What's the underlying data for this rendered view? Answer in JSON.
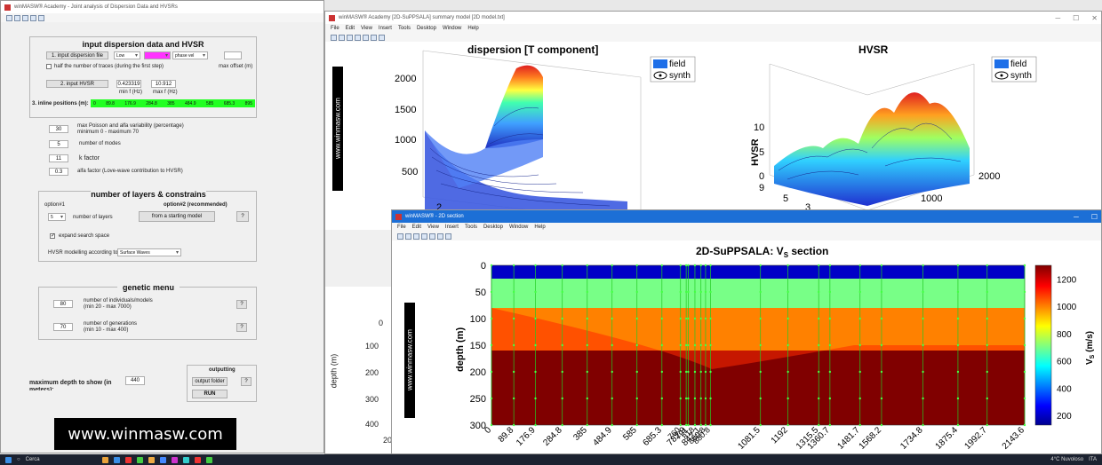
{
  "left_window": {
    "title": "winMASW® Academy - Joint analysis of Dispersion Data and HVSRs",
    "input_panel": {
      "title": "input dispersion data and HVSR",
      "btn_dispersion": "1. input dispersion file",
      "sel1": "Low",
      "sel2": "",
      "sel3": "phase vel",
      "half_traces": "half the number of traces (during the first step)",
      "max_offset": "max offset (m)",
      "btn_hvsr": "2. input HVSR",
      "min_f_value": "0.423319",
      "max_f_value": "10.912",
      "min_f": "min f  (Hz)",
      "max_f": "max f  (Hz)",
      "inline_label": "3. inline positions (m):",
      "inline_values": [
        "0",
        "89.8",
        "176.9",
        "284.8",
        "385",
        "484.9",
        "585",
        "685.3",
        "895"
      ]
    },
    "params": [
      {
        "value": "30",
        "label": "max Poisson and alfa variability (percentage)",
        "sub": "minimum 0 - maximum 70"
      },
      {
        "value": "5",
        "label": "number of modes",
        "sub": ""
      },
      {
        "value": "11",
        "label": "k factor",
        "sub": ""
      },
      {
        "value": "0.3",
        "label": "alfa factor (Love-wave contribution to HVSR)",
        "sub": ""
      }
    ],
    "layers_panel": {
      "title": "number of layers & constrains",
      "option1": "option#1",
      "option2": "option#2 (recommended)",
      "layers_value": "5",
      "layers_label": "number of layers",
      "btn_starting": "from a starting model",
      "help": "?",
      "expand": "expand search space",
      "hvsr_label": "HVSR modelling according to:",
      "hvsr_select": "Surface Waves"
    },
    "genetic": {
      "title": "genetic menu",
      "ind_value": "80",
      "ind_label": "number of individuals/models",
      "ind_range": "(min 20 - max 7000)",
      "gen_value": "70",
      "gen_label": "number of generations",
      "gen_range": "(min 10 - max 400)",
      "help": "?"
    },
    "max_depth_label": "maximum depth to show (in",
    "max_depth_label2": "meters):",
    "max_depth_value": "440",
    "output": {
      "title": "outputting",
      "folder": "output folder",
      "run": "RUN",
      "help": "?"
    },
    "banner": "www.winmasw.com"
  },
  "summary_window": {
    "title": "winMASW® Academy [2D-SuPPSALA] summary model [2D model.txt]",
    "menu": [
      "File",
      "Edit",
      "View",
      "Insert",
      "Tools",
      "Desktop",
      "Window",
      "Help"
    ],
    "watermark": "www.winmasw.com",
    "dispersion": {
      "title": "dispersion [T component]",
      "z_ticks": [
        "2000",
        "1500",
        "1000",
        "500"
      ],
      "x_ticks": [
        "2"
      ],
      "y_ticks": [
        "1000",
        "2000"
      ],
      "legend": [
        "field",
        "synth"
      ]
    },
    "hvsr": {
      "title": "HVSR",
      "zlabel": "HVSR",
      "z_ticks": [
        "10",
        "5",
        "0"
      ],
      "x_ticks": [
        "9",
        "5",
        "3",
        "2"
      ],
      "y_ticks": [
        "1000",
        "2000"
      ],
      "legend": [
        "field",
        "synth"
      ]
    },
    "lower_axis": {
      "ylabel": "depth (m)",
      "y_ticks": [
        "0",
        "100",
        "200",
        "300",
        "400"
      ],
      "x_tick": "200"
    }
  },
  "section_window": {
    "title": "winMASW® - 2D section",
    "menu": [
      "File",
      "Edit",
      "View",
      "Insert",
      "Tools",
      "Desktop",
      "Window",
      "Help"
    ],
    "watermark": "www.winmasw.com",
    "title_main": "2D-SuPPSALA: V",
    "title_sub": "S",
    "title_tail": " section",
    "colorbar_label": "V",
    "colorbar_sub": "S",
    "colorbar_unit": " (m/s)",
    "colorbar_ticks": [
      "1200",
      "1000",
      "800",
      "600",
      "400",
      "200"
    ]
  },
  "chart_data": {
    "type": "heatmap",
    "title": "2D-SuPPSALA: VS section",
    "ylabel": "depth (m)",
    "y_ticks": [
      0,
      50,
      100,
      150,
      200,
      250,
      300
    ],
    "ylim": [
      300,
      0
    ],
    "x_ticks": [
      "0",
      "89.8",
      "176.9",
      "284.8",
      "385",
      "484.9",
      "585",
      "685.3",
      "782.9",
      "842.1",
      "1081.5",
      "1192",
      "1315.5",
      "1360.7",
      "1481.7",
      "1568.2",
      "1734.8",
      "1875.4",
      "1992.7",
      "2143.6"
    ],
    "extra_x_ticks": [
      "760",
      "791",
      "818",
      "860.8",
      "880.8"
    ],
    "colorbar_range": [
      130,
      1300
    ],
    "layers": [
      {
        "depth_top": 0,
        "depth_bottom": 25,
        "vs": 200
      },
      {
        "depth_top": 25,
        "depth_bottom": 80,
        "vs": 700
      },
      {
        "depth_top": 80,
        "depth_bottom": 160,
        "vs": 1000
      },
      {
        "depth_top": 160,
        "depth_bottom": 300,
        "vs": 1300
      }
    ]
  },
  "taskbar": {
    "search": "Cerca",
    "weather": "4°C Nuvoloso",
    "time": "ITA"
  }
}
